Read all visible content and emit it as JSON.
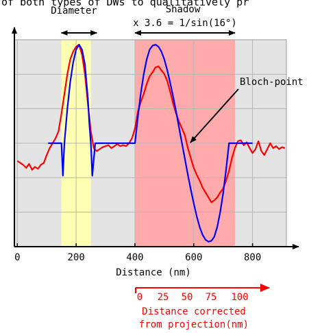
{
  "top_text": "of both types of DWs to qualitatively pr",
  "chart_data": {
    "type": "line",
    "xlabel": "Distance (nm)",
    "ylabel": "",
    "xlim": [
      -10,
      915
    ],
    "ylim": [
      -1.05,
      1.05
    ],
    "xticks": [
      0,
      200,
      400,
      600,
      800
    ],
    "grid": true,
    "bands": [
      {
        "name": "diameter-band",
        "x0": 150,
        "x1": 250,
        "color": "#ffffb3"
      },
      {
        "name": "shadow-band",
        "x0": 400,
        "x1": 740,
        "color": "#ffabab"
      }
    ],
    "background_color": "#e4e4e4",
    "series": [
      {
        "color": "#ff0000",
        "x": [
          0,
          10,
          20,
          30,
          40,
          50,
          60,
          70,
          80,
          90,
          100,
          110,
          120,
          130,
          140,
          150,
          160,
          170,
          180,
          190,
          200,
          210,
          220,
          230,
          240,
          250,
          260,
          270,
          280,
          290,
          300,
          310,
          320,
          330,
          340,
          350,
          360,
          370,
          380,
          390,
          400,
          410,
          420,
          430,
          440,
          450,
          460,
          470,
          480,
          490,
          500,
          510,
          520,
          530,
          540,
          550,
          560,
          570,
          580,
          590,
          600,
          610,
          620,
          630,
          640,
          650,
          660,
          670,
          680,
          690,
          700,
          710,
          720,
          730,
          740,
          750,
          760,
          770,
          780,
          790,
          800,
          810,
          820,
          830,
          840,
          850,
          860,
          870,
          880,
          890,
          900,
          910
        ],
        "y": [
          -0.18,
          -0.2,
          -0.22,
          -0.25,
          -0.21,
          -0.27,
          -0.24,
          -0.26,
          -0.22,
          -0.2,
          -0.12,
          -0.05,
          0.0,
          0.05,
          0.12,
          0.3,
          0.5,
          0.7,
          0.85,
          0.93,
          0.98,
          1.0,
          0.9,
          0.7,
          0.4,
          0.12,
          -0.05,
          -0.08,
          -0.06,
          -0.04,
          -0.03,
          -0.02,
          -0.05,
          -0.03,
          -0.01,
          -0.03,
          -0.02,
          -0.03,
          0.0,
          0.05,
          0.15,
          0.32,
          0.42,
          0.5,
          0.6,
          0.68,
          0.72,
          0.77,
          0.78,
          0.74,
          0.7,
          0.63,
          0.52,
          0.4,
          0.3,
          0.22,
          0.15,
          0.08,
          -0.05,
          -0.15,
          -0.25,
          -0.32,
          -0.38,
          -0.45,
          -0.5,
          -0.55,
          -0.6,
          -0.58,
          -0.55,
          -0.5,
          -0.46,
          -0.38,
          -0.28,
          -0.15,
          -0.05,
          0.02,
          0.03,
          -0.02,
          0.01,
          -0.05,
          -0.1,
          -0.06,
          0.02,
          -0.08,
          -0.12,
          -0.06,
          0.0,
          -0.05,
          -0.03,
          -0.06,
          -0.04,
          -0.05
        ]
      },
      {
        "color": "#0000ff",
        "x": [
          105,
          140,
          150,
          155,
          160,
          170,
          180,
          190,
          200,
          210,
          220,
          230,
          240,
          245,
          250,
          255,
          265,
          400,
          410,
          420,
          430,
          440,
          450,
          460,
          470,
          480,
          490,
          500,
          510,
          520,
          530,
          540,
          550,
          560,
          570,
          580,
          590,
          600,
          610,
          620,
          630,
          640,
          650,
          660,
          670,
          680,
          690,
          700,
          710,
          720,
          730,
          740,
          745,
          800
        ],
        "y": [
          0.0,
          0.0,
          0.0,
          -0.33,
          0.0,
          0.35,
          0.62,
          0.82,
          0.95,
          1.0,
          0.95,
          0.8,
          0.45,
          0.2,
          0.0,
          -0.33,
          0.0,
          0.0,
          0.27,
          0.51,
          0.7,
          0.85,
          0.95,
          0.99,
          1.0,
          0.98,
          0.93,
          0.85,
          0.74,
          0.61,
          0.47,
          0.32,
          0.16,
          0.0,
          -0.16,
          -0.32,
          -0.47,
          -0.61,
          -0.74,
          -0.85,
          -0.93,
          -0.98,
          -1.0,
          -0.99,
          -0.95,
          -0.85,
          -0.7,
          -0.51,
          -0.27,
          0.0,
          0.0,
          0.0,
          0.0,
          0.0
        ]
      }
    ],
    "annotations": {
      "diameter_label": "Diameter",
      "shadow_label": "Shadow",
      "shadow_formula": "x 3.6 = 1/sin(16°)",
      "bloch_label": "Bloch-point",
      "corrected_ticks": [
        "0",
        "25",
        "50",
        "75",
        "100"
      ],
      "corrected_label_line1": "Distance corrected",
      "corrected_label_line2": "from projection(nm)",
      "annotation_color": "#ff0000"
    }
  }
}
